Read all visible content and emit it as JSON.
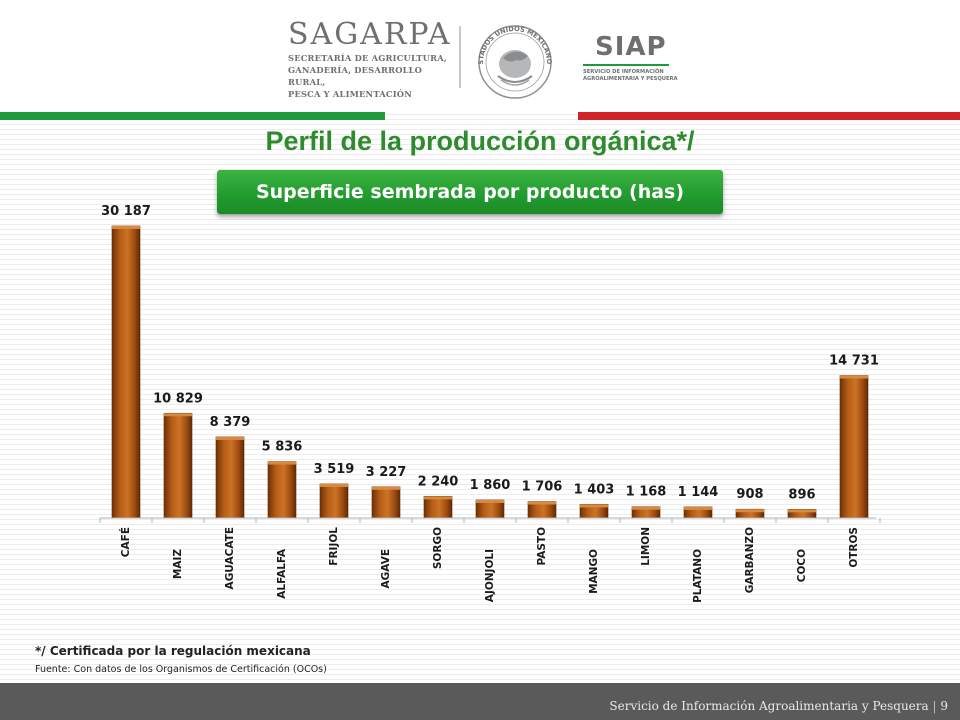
{
  "header": {
    "sagarpa_name": "SAGARPA",
    "sagarpa_sub": [
      "SECRETARÍA DE AGRICULTURA,",
      "GANADERÍA, DESARROLLO RURAL,",
      "PESCA Y ALIMENTACIÓN"
    ],
    "seal_text": "ESTADOS UNIDOS MEXICANOS",
    "siap_name": "SIAP",
    "siap_sub": [
      "SERVICIO DE INFORMACIÓN",
      "AGROALIMENTARIA Y PESQUERA"
    ],
    "colors": {
      "green": "#1f9a3c",
      "red": "#d2232a"
    }
  },
  "title": "Perfil de la producción orgánica*/",
  "subtitle": "Superficie sembrada por producto (has)",
  "chart_data": {
    "type": "bar",
    "categories": [
      "CAFÉ",
      "MAIZ",
      "AGUACATE",
      "ALFALFA",
      "FRIJOL",
      "AGAVE",
      "SORGO",
      "AJONJOLI",
      "PASTO",
      "MANGO",
      "LIMON",
      "PLATANO",
      "GARBANZO",
      "COCO",
      "OTROS"
    ],
    "values": [
      30187,
      10829,
      8379,
      5836,
      3519,
      3227,
      2240,
      1860,
      1706,
      1403,
      1168,
      1144,
      908,
      896,
      14731
    ],
    "value_labels": [
      "30 187",
      "10 829",
      "8 379",
      "5 836",
      "3 519",
      "3 227",
      "2 240",
      "1 860",
      "1 706",
      "1 403",
      "1 168",
      "1 144",
      "908",
      "896",
      "14 731"
    ],
    "ylim": [
      0,
      30187
    ],
    "grid": false,
    "legend": "none",
    "bar_color": "#a6520f"
  },
  "notes": {
    "main": "*/ Certificada por la regulación mexicana",
    "source": "Fuente: Con datos de los Organismos de Certificación (OCOs)"
  },
  "footer": {
    "text": "Servicio de Información Agroalimentaria y Pesquera",
    "page": "9"
  }
}
